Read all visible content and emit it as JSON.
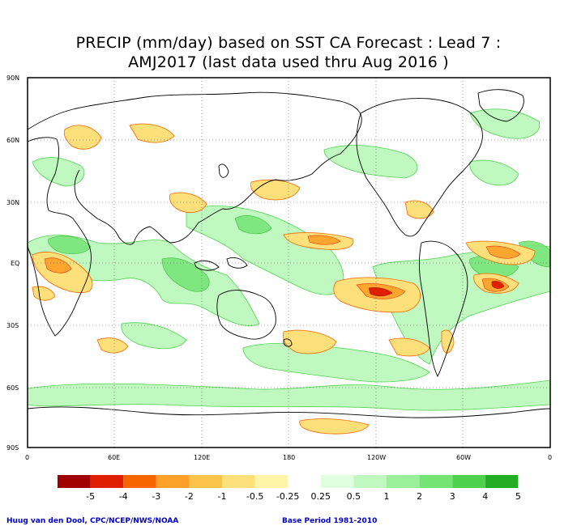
{
  "title": {
    "line1": "PRECIP (mm/day) based on SST CA Forecast : Lead 7 :",
    "line2": "AMJ2017 (last data used thru Aug 2016 )"
  },
  "axes": {
    "lat_labels": [
      "90N",
      "60N",
      "30N",
      "EQ",
      "30S",
      "60S",
      "90S"
    ],
    "lon_labels": [
      "0",
      "60E",
      "120E",
      "180",
      "120W",
      "60W",
      "0"
    ]
  },
  "colorbar": {
    "labels": [
      "-5",
      "-4",
      "-3",
      "-2",
      "-1",
      "-0.5",
      "-0.25",
      "0.25",
      "0.5",
      "1",
      "2",
      "3",
      "4",
      "5"
    ],
    "colors": [
      "#a00000",
      "#e01e00",
      "#f86400",
      "#fca028",
      "#fcc34a",
      "#fde07a",
      "#fff4a8",
      "#ffffff",
      "#dfffdf",
      "#bff9bf",
      "#99f099",
      "#74e474",
      "#4ed24e",
      "#24ac24"
    ]
  },
  "footer": {
    "credit": "Huug van den Dool, CPC/NCEP/NWS/NOAA",
    "base_period": "Base Period 1981-2010"
  }
}
